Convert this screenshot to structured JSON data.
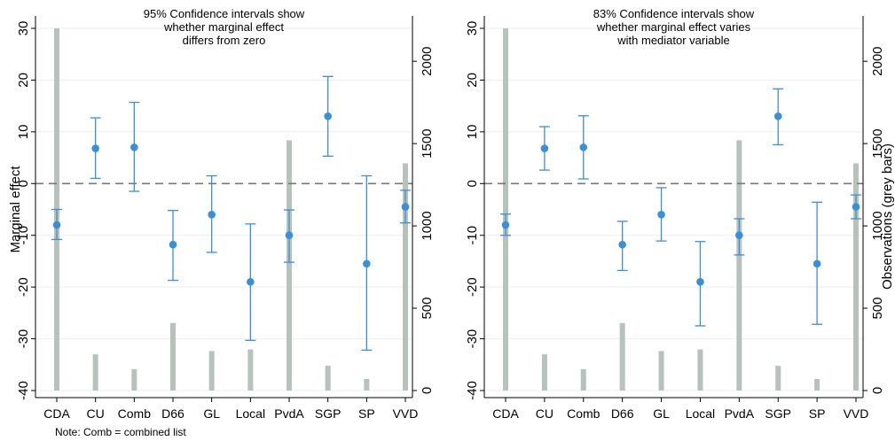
{
  "chart_data": [
    {
      "type": "errorbar",
      "title": [
        "95% Confidence intervals show",
        "whether marginal effect",
        "differs from zero"
      ],
      "ylabel": "Marginal effect",
      "y2label": "",
      "categories": [
        "CDA",
        "CU",
        "Comb",
        "D66",
        "GL",
        "Local",
        "PvdA",
        "SGP",
        "SP",
        "VVD"
      ],
      "ylim": [
        -40,
        30
      ],
      "yticks": [
        30,
        20,
        10,
        0,
        -10,
        -20,
        -30,
        -40
      ],
      "y2lim": [
        0,
        2200
      ],
      "y2ticks": [
        0,
        500,
        1000,
        1500,
        2000
      ],
      "reference_line": 0,
      "estimates": [
        -8,
        6.8,
        7,
        -11.8,
        -6,
        -19,
        -10,
        13,
        -15.5,
        -4.5
      ],
      "ci_low": [
        -10.8,
        1,
        -1.5,
        -18.7,
        -13.3,
        -30.3,
        -15.2,
        5.3,
        -32.2,
        -7.6
      ],
      "ci_high": [
        -5,
        12.7,
        15.7,
        -5.2,
        1.5,
        -7.8,
        -5.1,
        20.7,
        1.5,
        -1.3
      ],
      "observations": [
        2200,
        220,
        130,
        410,
        240,
        250,
        1520,
        150,
        70,
        1380
      ],
      "colors": {
        "point": "#3a8fd9",
        "ci": "#3a8fd9",
        "bars": "#b7c2bd",
        "refline": "#777777",
        "grid": "#eeeeee"
      }
    },
    {
      "type": "errorbar",
      "title": [
        "83% Confidence intervals show",
        "whether marginal effect varies",
        "with mediator variable"
      ],
      "ylabel": "",
      "y2label": "Observations (grey bars)",
      "categories": [
        "CDA",
        "CU",
        "Comb",
        "D66",
        "GL",
        "Local",
        "PvdA",
        "SGP",
        "SP",
        "VVD"
      ],
      "ylim": [
        -40,
        30
      ],
      "yticks": [
        30,
        20,
        10,
        0,
        -10,
        -20,
        -30,
        -40
      ],
      "y2lim": [
        0,
        2200
      ],
      "y2ticks": [
        0,
        500,
        1000,
        1500,
        2000
      ],
      "reference_line": 0,
      "estimates": [
        -8,
        6.8,
        7,
        -11.8,
        -6,
        -19,
        -10,
        13,
        -15.5,
        -4.5
      ],
      "ci_low": [
        -10,
        2.6,
        0.9,
        -16.8,
        -11.1,
        -27.5,
        -13.8,
        7.5,
        -27.2,
        -6.8
      ],
      "ci_high": [
        -5.9,
        11,
        13.1,
        -7.3,
        -0.8,
        -11.2,
        -6.8,
        18.3,
        -3.6,
        -2.2
      ],
      "observations": [
        2200,
        220,
        130,
        410,
        240,
        250,
        1520,
        150,
        70,
        1380
      ],
      "colors": {
        "point": "#3a8fd9",
        "ci": "#3a8fd9",
        "bars": "#b7c2bd",
        "refline": "#777777",
        "grid": "#eeeeee"
      }
    }
  ],
  "note": "Note: Comb = combined list"
}
